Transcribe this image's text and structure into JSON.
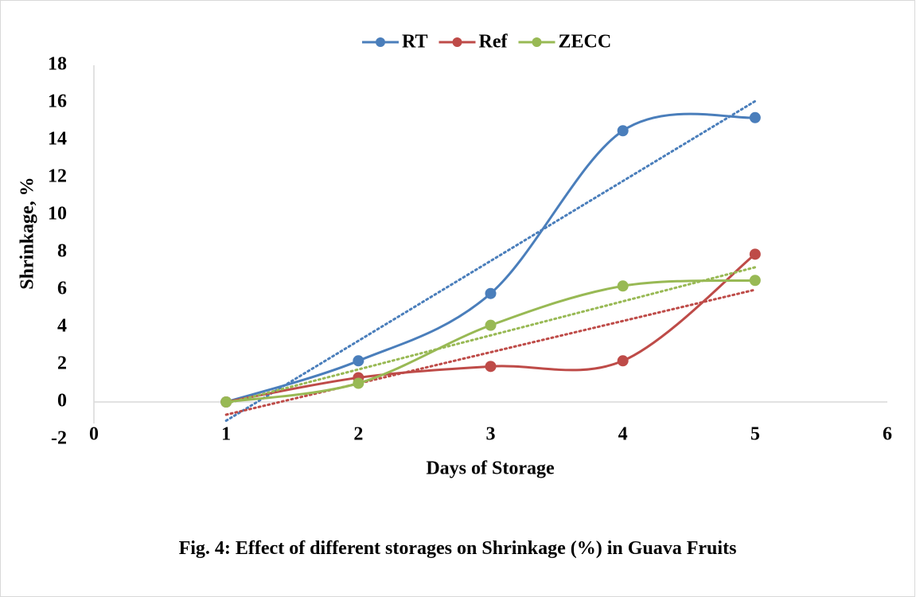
{
  "chart_data": {
    "type": "scatter-smooth",
    "xlabel": "Days of Storage",
    "ylabel": "Shrinkage, %",
    "caption": "Fig. 4: Effect of different storages on Shrinkage (%) in Guava Fruits",
    "x": [
      1,
      2,
      3,
      4,
      5
    ],
    "series": [
      {
        "name": "RT",
        "color": "#4a7ebb",
        "values": [
          0,
          2.2,
          5.8,
          14.5,
          15.2
        ]
      },
      {
        "name": "Ref",
        "color": "#be4b48",
        "values": [
          0,
          1.3,
          1.9,
          2.2,
          7.9
        ]
      },
      {
        "name": "ZECC",
        "color": "#98b954",
        "values": [
          0,
          1.0,
          4.1,
          6.2,
          6.5
        ]
      }
    ],
    "trendline": "linear",
    "xlim": [
      0,
      6
    ],
    "xticks": [
      0,
      1,
      2,
      3,
      4,
      5,
      6
    ],
    "ylim": [
      -2,
      18
    ],
    "yticks": [
      -2,
      0,
      2,
      4,
      6,
      8,
      10,
      12,
      14,
      16,
      18
    ],
    "legend": "top"
  }
}
